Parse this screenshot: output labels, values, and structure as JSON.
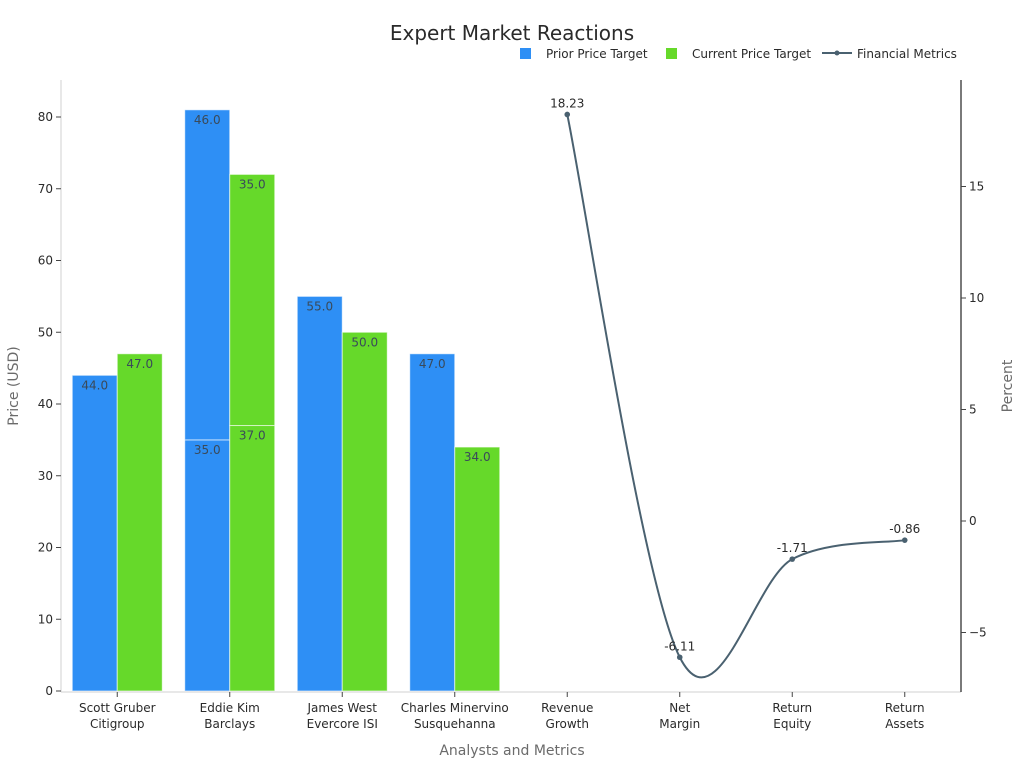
{
  "chart_data": {
    "type": "bar",
    "title": "Expert Market Reactions",
    "xlabel": "Analysts and Metrics",
    "ylabel": "Price (USD)",
    "y2label": "Percent",
    "categories": [
      "Scott Gruber\nCitigroup",
      "Eddie Kim\nBarclays",
      "James West\nEvercore ISI",
      "Charles Minervino\nSusquehanna",
      "Revenue\nGrowth",
      "Net\nMargin",
      "Return\nEquity",
      "Return\nAssets"
    ],
    "ylim": [
      0,
      85
    ],
    "y2lim": [
      -7.6,
      19.0
    ],
    "yticks": [
      0,
      10,
      20,
      30,
      40,
      50,
      60,
      70,
      80
    ],
    "y2ticks": [
      -5,
      0,
      5,
      10,
      15
    ],
    "legend_position": "top-right",
    "grid": false,
    "series": [
      {
        "name": "Prior Price Target",
        "type": "bar",
        "axis": "left",
        "color": "#2e8ff5",
        "segments": [
          [
            {
              "base": 0,
              "value": 44.0
            }
          ],
          [
            {
              "base": 0,
              "value": 35.0
            },
            {
              "base": 35.0,
              "value": 46.0
            }
          ],
          [
            {
              "base": 0,
              "value": 55.0
            }
          ],
          [
            {
              "base": 0,
              "value": 47.0
            }
          ]
        ]
      },
      {
        "name": "Current Price Target",
        "type": "bar",
        "axis": "left",
        "color": "#66d92a",
        "segments": [
          [
            {
              "base": 0,
              "value": 47.0
            }
          ],
          [
            {
              "base": 0,
              "value": 37.0
            },
            {
              "base": 37.0,
              "value": 35.0
            }
          ],
          [
            {
              "base": 0,
              "value": 50.0
            }
          ],
          [
            {
              "base": 0,
              "value": 34.0
            }
          ]
        ]
      },
      {
        "name": "Financial Metrics",
        "type": "line",
        "axis": "right",
        "color": "#4a6170",
        "categories": [
          "Revenue Growth",
          "Net Margin",
          "Return Equity",
          "Return Assets"
        ],
        "values": [
          18.23,
          -6.11,
          -1.71,
          -0.86
        ]
      }
    ]
  }
}
